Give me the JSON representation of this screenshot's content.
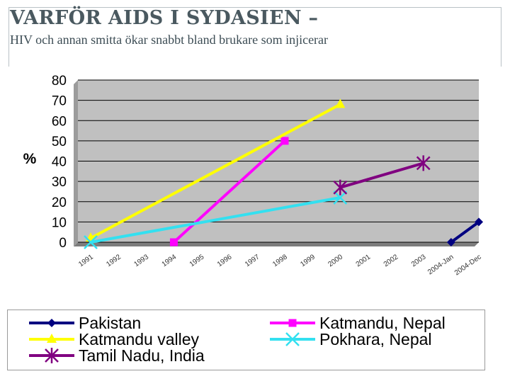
{
  "slide": {
    "title": "VARFÖR AIDS I SYDASIEN  –",
    "subtitle": "HIV och annan smitta ökar snabbt bland brukare som injicerar"
  },
  "chart_data": {
    "type": "line",
    "title": "",
    "xlabel": "",
    "ylabel": "%",
    "ylim": [
      0,
      80
    ],
    "yticks": [
      0,
      10,
      20,
      30,
      40,
      50,
      60,
      70,
      80
    ],
    "grid": true,
    "legend_position": "bottom",
    "categories": [
      "1991",
      "1992",
      "1993",
      "1994",
      "1995",
      "1996",
      "1997",
      "1998",
      "1999",
      "2000",
      "2001",
      "2002",
      "2003",
      "2004-Jan",
      "2004-Dec"
    ],
    "series": [
      {
        "name": "Pakistan",
        "color": "#000080",
        "marker": "diamond",
        "points": [
          {
            "x": "2004-Jan",
            "y": 0
          },
          {
            "x": "2004-Dec",
            "y": 10
          }
        ]
      },
      {
        "name": "Katmandu, Nepal",
        "color": "#ff00ff",
        "marker": "square",
        "points": [
          {
            "x": "1994",
            "y": 0
          },
          {
            "x": "1998",
            "y": 50
          }
        ]
      },
      {
        "name": "Katmandu valley",
        "color": "#ffff00",
        "marker": "triangle",
        "points": [
          {
            "x": "1991",
            "y": 2
          },
          {
            "x": "2000",
            "y": 68
          }
        ]
      },
      {
        "name": "Pokhara, Nepal",
        "color": "#33e0f0",
        "marker": "x",
        "points": [
          {
            "x": "1991",
            "y": 0
          },
          {
            "x": "2000",
            "y": 22
          }
        ]
      },
      {
        "name": "Tamil Nadu, India",
        "color": "#800080",
        "marker": "star",
        "points": [
          {
            "x": "2000",
            "y": 27
          },
          {
            "x": "2003",
            "y": 39
          }
        ]
      }
    ]
  }
}
